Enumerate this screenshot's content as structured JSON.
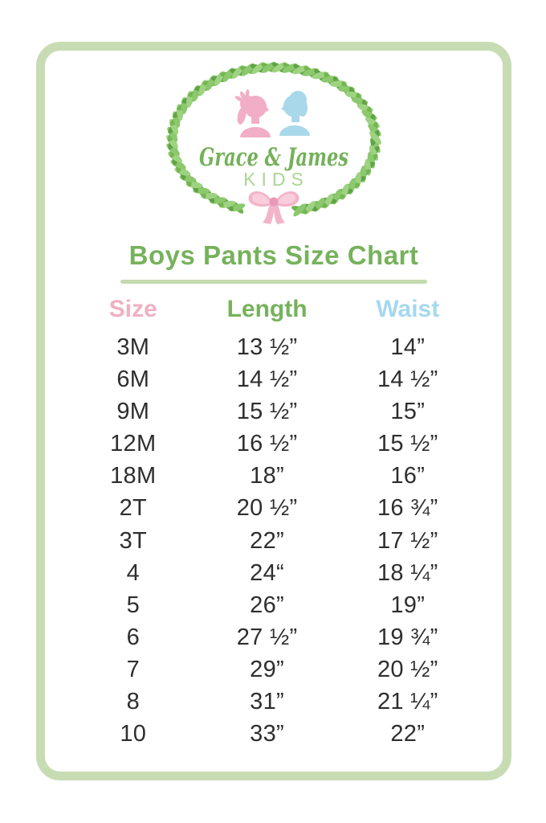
{
  "brand": {
    "script": "Grace & James",
    "sub": "KIDS"
  },
  "title": "Boys Pants Size Chart",
  "table": {
    "headers": [
      {
        "id": "size",
        "label": "Size",
        "color": "#f0b0c2"
      },
      {
        "id": "length",
        "label": "Length",
        "color": "#76b25c"
      },
      {
        "id": "waist",
        "label": "Waist",
        "color": "#a5d8ee"
      }
    ],
    "rows": [
      {
        "size": "3M",
        "length": "13 ½”",
        "waist": "14”"
      },
      {
        "size": "6M",
        "length": "14 ½”",
        "waist": "14 ½”"
      },
      {
        "size": "9M",
        "length": "15 ½”",
        "waist": "15”"
      },
      {
        "size": "12M",
        "length": "16 ½”",
        "waist": "15 ½”"
      },
      {
        "size": "18M",
        "length": "18”",
        "waist": "16”"
      },
      {
        "size": "2T",
        "length": "20 ½”",
        "waist": "16 ¾”"
      },
      {
        "size": "3T",
        "length": "22”",
        "waist": "17 ½”"
      },
      {
        "size": "4",
        "length": "24“",
        "waist": "18 ¼”"
      },
      {
        "size": "5",
        "length": "26”",
        "waist": "19”"
      },
      {
        "size": "6",
        "length": "27 ½”",
        "waist": "19 ¾”"
      },
      {
        "size": "7",
        "length": "29”",
        "waist": "20 ½”"
      },
      {
        "size": "8",
        "length": "31”",
        "waist": "21 ¼”"
      },
      {
        "size": "10",
        "length": "33”",
        "waist": "22”"
      }
    ]
  },
  "colors": {
    "frame": "#c8dcb4",
    "divider": "#c3dbae",
    "title": "#76b25c",
    "text": "#2e2e2e",
    "girl": "#f2aec6",
    "boy": "#a9d8ea",
    "bow": "#f3b3c9",
    "bow_light": "#f9cddb",
    "bow_dark": "#e898b8",
    "script": "#74b159",
    "kids": "#abd595",
    "leaf_shades": [
      "#74b551",
      "#8cc86d",
      "#5fa444",
      "#9ed381"
    ]
  }
}
